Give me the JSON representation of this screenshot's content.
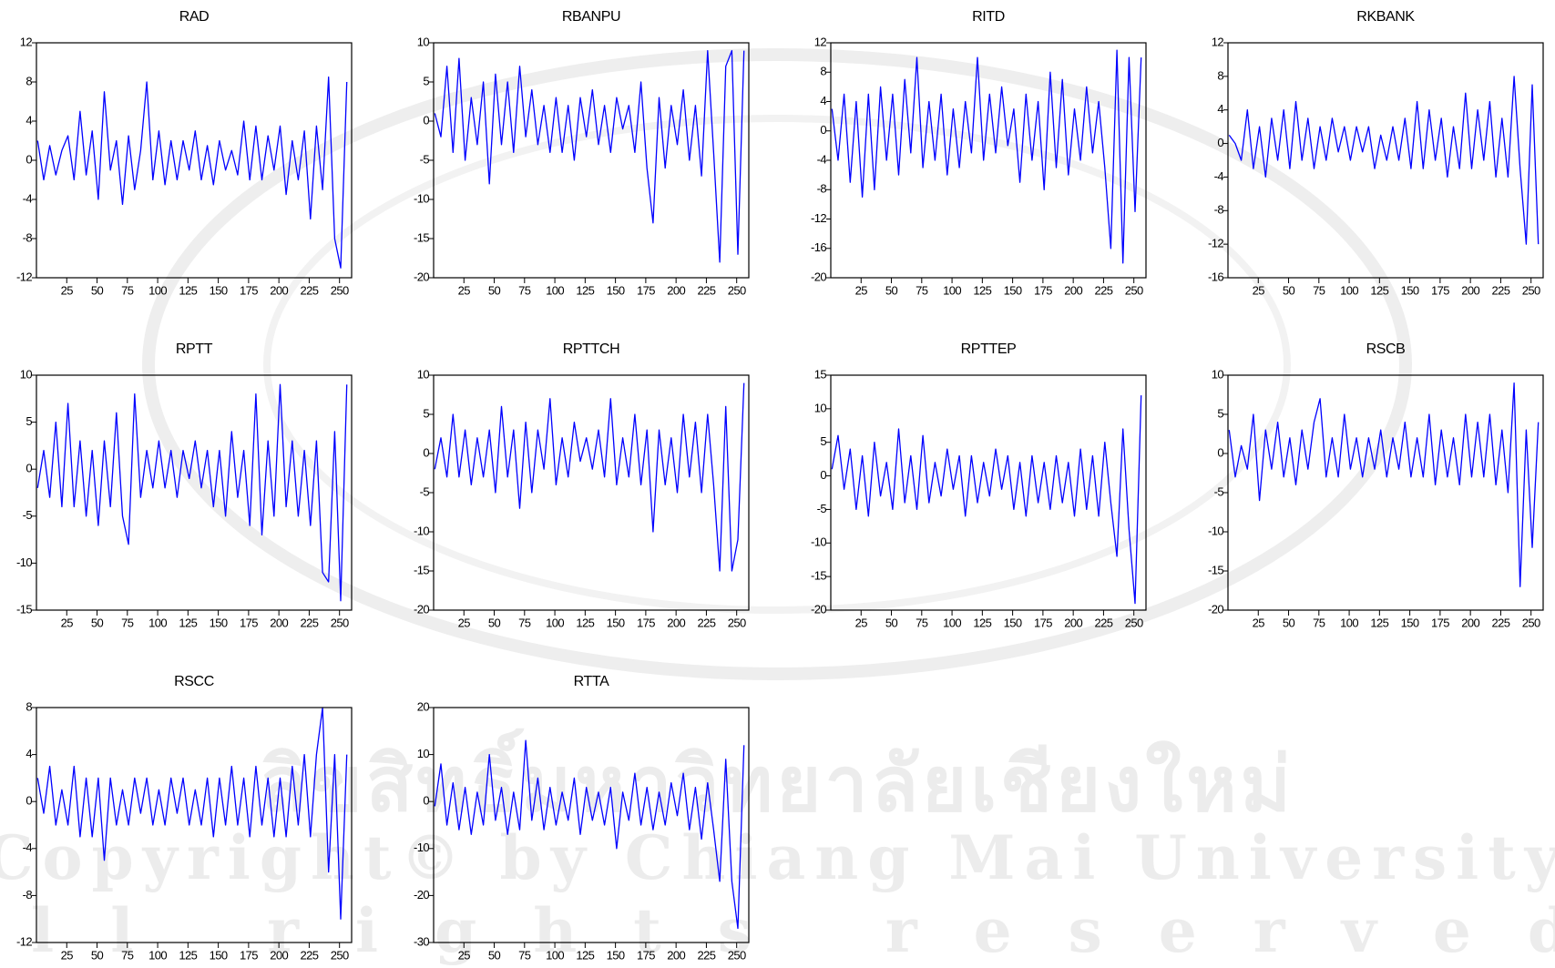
{
  "chart_data": [
    {
      "type": "line",
      "title": "RAD",
      "color": "#0000ff",
      "xlim": [
        0,
        260
      ],
      "xticks": [
        25,
        50,
        75,
        100,
        125,
        150,
        175,
        200,
        225,
        250
      ],
      "ylim": [
        -12,
        12
      ],
      "yticks": [
        -12,
        -8,
        -4,
        0,
        4,
        8,
        12
      ],
      "x": [
        1,
        6,
        11,
        16,
        21,
        26,
        31,
        36,
        41,
        46,
        51,
        56,
        61,
        66,
        71,
        76,
        81,
        86,
        91,
        96,
        101,
        106,
        111,
        116,
        121,
        126,
        131,
        136,
        141,
        146,
        151,
        156,
        161,
        166,
        171,
        176,
        181,
        186,
        191,
        196,
        201,
        206,
        211,
        216,
        221,
        226,
        231,
        236,
        241,
        246,
        251,
        256
      ],
      "values": [
        2,
        -2,
        1.5,
        -1.5,
        1,
        2.5,
        -2,
        5,
        -1.5,
        3,
        -4,
        7,
        -1,
        2,
        -4.5,
        2.5,
        -3,
        1,
        8,
        -2,
        3,
        -2.5,
        2,
        -2,
        2,
        -1,
        3,
        -2,
        1.5,
        -2.5,
        2,
        -1,
        1,
        -1.5,
        4,
        -2,
        3.5,
        -2,
        2.5,
        -1,
        3.5,
        -3.5,
        2,
        -2,
        3,
        -6,
        3.5,
        -3,
        8.5,
        -8,
        -11,
        8
      ]
    },
    {
      "type": "line",
      "title": "RBANPU",
      "color": "#0000ff",
      "xlim": [
        0,
        260
      ],
      "xticks": [
        25,
        50,
        75,
        100,
        125,
        150,
        175,
        200,
        225,
        250
      ],
      "ylim": [
        -20,
        10
      ],
      "yticks": [
        -20,
        -15,
        -10,
        -5,
        0,
        5,
        10
      ],
      "x": [
        1,
        6,
        11,
        16,
        21,
        26,
        31,
        36,
        41,
        46,
        51,
        56,
        61,
        66,
        71,
        76,
        81,
        86,
        91,
        96,
        101,
        106,
        111,
        116,
        121,
        126,
        131,
        136,
        141,
        146,
        151,
        156,
        161,
        166,
        171,
        176,
        181,
        186,
        191,
        196,
        201,
        206,
        211,
        216,
        221,
        226,
        231,
        236,
        241,
        246,
        251,
        256
      ],
      "values": [
        1,
        -2,
        7,
        -4,
        8,
        -5,
        3,
        -3,
        5,
        -8,
        6,
        -3,
        5,
        -4,
        7,
        -2,
        4,
        -3,
        2,
        -4,
        3,
        -4,
        2,
        -5,
        3,
        -2,
        4,
        -3,
        2,
        -4,
        3,
        -1,
        2,
        -4,
        5,
        -6,
        -13,
        3,
        -6,
        2,
        -3,
        4,
        -5,
        2,
        -7,
        9,
        -4,
        -18,
        7,
        9,
        -17,
        9
      ]
    },
    {
      "type": "line",
      "title": "RITD",
      "color": "#0000ff",
      "xlim": [
        0,
        260
      ],
      "xticks": [
        25,
        50,
        75,
        100,
        125,
        150,
        175,
        200,
        225,
        250
      ],
      "ylim": [
        -20,
        12
      ],
      "yticks": [
        -20,
        -16,
        -12,
        -8,
        -4,
        0,
        4,
        8,
        12
      ],
      "x": [
        1,
        6,
        11,
        16,
        21,
        26,
        31,
        36,
        41,
        46,
        51,
        56,
        61,
        66,
        71,
        76,
        81,
        86,
        91,
        96,
        101,
        106,
        111,
        116,
        121,
        126,
        131,
        136,
        141,
        146,
        151,
        156,
        161,
        166,
        171,
        176,
        181,
        186,
        191,
        196,
        201,
        206,
        211,
        216,
        221,
        226,
        231,
        236,
        241,
        246,
        251,
        256
      ],
      "values": [
        3,
        -4,
        5,
        -7,
        4,
        -9,
        5,
        -8,
        6,
        -4,
        5,
        -6,
        7,
        -3,
        10,
        -5,
        4,
        -4,
        5,
        -6,
        3,
        -5,
        4,
        -3,
        10,
        -4,
        5,
        -3,
        6,
        -2,
        3,
        -7,
        5,
        -4,
        4,
        -8,
        8,
        -5,
        7,
        -6,
        3,
        -4,
        6,
        -3,
        4,
        -5,
        -16,
        11,
        -18,
        10,
        -11,
        10
      ]
    },
    {
      "type": "line",
      "title": "RKBANK",
      "color": "#0000ff",
      "xlim": [
        0,
        260
      ],
      "xticks": [
        25,
        50,
        75,
        100,
        125,
        150,
        175,
        200,
        225,
        250
      ],
      "ylim": [
        -16,
        12
      ],
      "yticks": [
        -16,
        -12,
        -8,
        -4,
        0,
        4,
        8,
        12
      ],
      "x": [
        1,
        6,
        11,
        16,
        21,
        26,
        31,
        36,
        41,
        46,
        51,
        56,
        61,
        66,
        71,
        76,
        81,
        86,
        91,
        96,
        101,
        106,
        111,
        116,
        121,
        126,
        131,
        136,
        141,
        146,
        151,
        156,
        161,
        166,
        171,
        176,
        181,
        186,
        191,
        196,
        201,
        206,
        211,
        216,
        221,
        226,
        231,
        236,
        241,
        246,
        251,
        256
      ],
      "values": [
        1,
        0,
        -2,
        4,
        -3,
        2,
        -4,
        3,
        -2,
        4,
        -3,
        5,
        -2,
        3,
        -3,
        2,
        -2,
        3,
        -1,
        2,
        -2,
        2,
        -1,
        2,
        -3,
        1,
        -2,
        2,
        -2,
        3,
        -3,
        5,
        -3,
        4,
        -2,
        3,
        -4,
        2,
        -3,
        6,
        -3,
        4,
        -2,
        5,
        -4,
        3,
        -4,
        8,
        -3,
        -12,
        7,
        -12
      ]
    },
    {
      "type": "line",
      "title": "RPTT",
      "color": "#0000ff",
      "xlim": [
        0,
        260
      ],
      "xticks": [
        25,
        50,
        75,
        100,
        125,
        150,
        175,
        200,
        225,
        250
      ],
      "ylim": [
        -15,
        10
      ],
      "yticks": [
        -15,
        -10,
        -5,
        0,
        5,
        10
      ],
      "x": [
        1,
        6,
        11,
        16,
        21,
        26,
        31,
        36,
        41,
        46,
        51,
        56,
        61,
        66,
        71,
        76,
        81,
        86,
        91,
        96,
        101,
        106,
        111,
        116,
        121,
        126,
        131,
        136,
        141,
        146,
        151,
        156,
        161,
        166,
        171,
        176,
        181,
        186,
        191,
        196,
        201,
        206,
        211,
        216,
        221,
        226,
        231,
        236,
        241,
        246,
        251,
        256
      ],
      "values": [
        -2,
        2,
        -3,
        5,
        -4,
        7,
        -4,
        3,
        -5,
        2,
        -6,
        3,
        -4,
        6,
        -5,
        -8,
        8,
        -3,
        2,
        -2,
        3,
        -2,
        2,
        -3,
        2,
        -1,
        3,
        -2,
        2,
        -4,
        2,
        -5,
        4,
        -3,
        2,
        -6,
        8,
        -7,
        3,
        -5,
        9,
        -4,
        3,
        -5,
        2,
        -6,
        3,
        -11,
        -12,
        4,
        -14,
        9
      ]
    },
    {
      "type": "line",
      "title": "RPTTCH",
      "color": "#0000ff",
      "xlim": [
        0,
        260
      ],
      "xticks": [
        25,
        50,
        75,
        100,
        125,
        150,
        175,
        200,
        225,
        250
      ],
      "ylim": [
        -20,
        10
      ],
      "yticks": [
        -20,
        -15,
        -10,
        -5,
        0,
        5,
        10
      ],
      "x": [
        1,
        6,
        11,
        16,
        21,
        26,
        31,
        36,
        41,
        46,
        51,
        56,
        61,
        66,
        71,
        76,
        81,
        86,
        91,
        96,
        101,
        106,
        111,
        116,
        121,
        126,
        131,
        136,
        141,
        146,
        151,
        156,
        161,
        166,
        171,
        176,
        181,
        186,
        191,
        196,
        201,
        206,
        211,
        216,
        221,
        226,
        231,
        236,
        241,
        246,
        251,
        256
      ],
      "values": [
        -2,
        2,
        -3,
        5,
        -3,
        3,
        -4,
        2,
        -3,
        3,
        -5,
        6,
        -3,
        3,
        -7,
        4,
        -5,
        3,
        -2,
        7,
        -4,
        2,
        -3,
        4,
        -1,
        2,
        -2,
        3,
        -3,
        7,
        -4,
        2,
        -3,
        5,
        -4,
        3,
        -10,
        3,
        -4,
        2,
        -5,
        5,
        -3,
        4,
        -5,
        5,
        -4,
        -15,
        6,
        -15,
        -11,
        9
      ]
    },
    {
      "type": "line",
      "title": "RPTTEP",
      "color": "#0000ff",
      "xlim": [
        0,
        260
      ],
      "xticks": [
        25,
        50,
        75,
        100,
        125,
        150,
        175,
        200,
        225,
        250
      ],
      "ylim": [
        -20,
        15
      ],
      "yticks": [
        -20,
        -15,
        -10,
        -5,
        0,
        5,
        10,
        15
      ],
      "x": [
        1,
        6,
        11,
        16,
        21,
        26,
        31,
        36,
        41,
        46,
        51,
        56,
        61,
        66,
        71,
        76,
        81,
        86,
        91,
        96,
        101,
        106,
        111,
        116,
        121,
        126,
        131,
        136,
        141,
        146,
        151,
        156,
        161,
        166,
        171,
        176,
        181,
        186,
        191,
        196,
        201,
        206,
        211,
        216,
        221,
        226,
        231,
        236,
        241,
        246,
        251,
        256
      ],
      "values": [
        1,
        6,
        -2,
        4,
        -5,
        3,
        -6,
        5,
        -3,
        2,
        -5,
        7,
        -4,
        3,
        -5,
        6,
        -4,
        2,
        -3,
        4,
        -2,
        3,
        -6,
        3,
        -4,
        2,
        -3,
        4,
        -2,
        3,
        -5,
        2,
        -6,
        3,
        -4,
        2,
        -5,
        3,
        -4,
        2,
        -6,
        4,
        -5,
        3,
        -6,
        5,
        -4,
        -12,
        7,
        -8,
        -19,
        12
      ]
    },
    {
      "type": "line",
      "title": "RSCB",
      "color": "#0000ff",
      "xlim": [
        0,
        260
      ],
      "xticks": [
        25,
        50,
        75,
        100,
        125,
        150,
        175,
        200,
        225,
        250
      ],
      "ylim": [
        -20,
        10
      ],
      "yticks": [
        -20,
        -15,
        -10,
        -5,
        0,
        5,
        10
      ],
      "x": [
        1,
        6,
        11,
        16,
        21,
        26,
        31,
        36,
        41,
        46,
        51,
        56,
        61,
        66,
        71,
        76,
        81,
        86,
        91,
        96,
        101,
        106,
        111,
        116,
        121,
        126,
        131,
        136,
        141,
        146,
        151,
        156,
        161,
        166,
        171,
        176,
        181,
        186,
        191,
        196,
        201,
        206,
        211,
        216,
        221,
        226,
        231,
        236,
        241,
        246,
        251,
        256
      ],
      "values": [
        3,
        -3,
        1,
        -2,
        5,
        -6,
        3,
        -2,
        4,
        -3,
        2,
        -4,
        3,
        -2,
        4,
        7,
        -3,
        2,
        -3,
        5,
        -2,
        2,
        -3,
        2,
        -2,
        3,
        -3,
        2,
        -2,
        4,
        -3,
        2,
        -3,
        5,
        -4,
        3,
        -3,
        2,
        -4,
        5,
        -3,
        4,
        -3,
        5,
        -4,
        3,
        -5,
        9,
        -17,
        3,
        -12,
        4
      ]
    },
    {
      "type": "line",
      "title": "RSCC",
      "color": "#0000ff",
      "xlim": [
        0,
        260
      ],
      "xticks": [
        25,
        50,
        75,
        100,
        125,
        150,
        175,
        200,
        225,
        250
      ],
      "ylim": [
        -12,
        8
      ],
      "yticks": [
        -12,
        -8,
        -4,
        0,
        4,
        8
      ],
      "x": [
        1,
        6,
        11,
        16,
        21,
        26,
        31,
        36,
        41,
        46,
        51,
        56,
        61,
        66,
        71,
        76,
        81,
        86,
        91,
        96,
        101,
        106,
        111,
        116,
        121,
        126,
        131,
        136,
        141,
        146,
        151,
        156,
        161,
        166,
        171,
        176,
        181,
        186,
        191,
        196,
        201,
        206,
        211,
        216,
        221,
        226,
        231,
        236,
        241,
        246,
        251,
        256
      ],
      "values": [
        2,
        -1,
        3,
        -2,
        1,
        -2,
        3,
        -3,
        2,
        -3,
        2,
        -5,
        2,
        -2,
        1,
        -2,
        2,
        -1,
        2,
        -2,
        1,
        -2,
        2,
        -1,
        2,
        -2,
        1,
        -2,
        2,
        -3,
        2,
        -2,
        3,
        -2,
        2,
        -3,
        3,
        -2,
        2,
        -3,
        2,
        -3,
        3,
        -2,
        4,
        -3,
        4,
        8,
        -6,
        4,
        -10,
        4
      ]
    },
    {
      "type": "line",
      "title": "RTTA",
      "color": "#0000ff",
      "xlim": [
        0,
        260
      ],
      "xticks": [
        25,
        50,
        75,
        100,
        125,
        150,
        175,
        200,
        225,
        250
      ],
      "ylim": [
        -30,
        20
      ],
      "yticks": [
        -30,
        -20,
        -10,
        0,
        10,
        20
      ],
      "x": [
        1,
        6,
        11,
        16,
        21,
        26,
        31,
        36,
        41,
        46,
        51,
        56,
        61,
        66,
        71,
        76,
        81,
        86,
        91,
        96,
        101,
        106,
        111,
        116,
        121,
        126,
        131,
        136,
        141,
        146,
        151,
        156,
        161,
        166,
        171,
        176,
        181,
        186,
        191,
        196,
        201,
        206,
        211,
        216,
        221,
        226,
        231,
        236,
        241,
        246,
        251,
        256
      ],
      "values": [
        -1,
        8,
        -5,
        4,
        -6,
        3,
        -7,
        2,
        -5,
        10,
        -4,
        3,
        -7,
        2,
        -6,
        13,
        -4,
        5,
        -6,
        3,
        -5,
        2,
        -4,
        5,
        -7,
        3,
        -4,
        2,
        -5,
        3,
        -10,
        2,
        -4,
        6,
        -5,
        3,
        -6,
        2,
        -5,
        4,
        -3,
        6,
        -6,
        3,
        -8,
        4,
        -6,
        -17,
        9,
        -17,
        -27,
        12
      ]
    }
  ],
  "watermark": {
    "thai": "ลิขสิทธิ์มหาวิทยาลัยเชียงใหม่",
    "copyright": "Copyright© by Chiang Mai University",
    "rights": "All rights reserved"
  }
}
